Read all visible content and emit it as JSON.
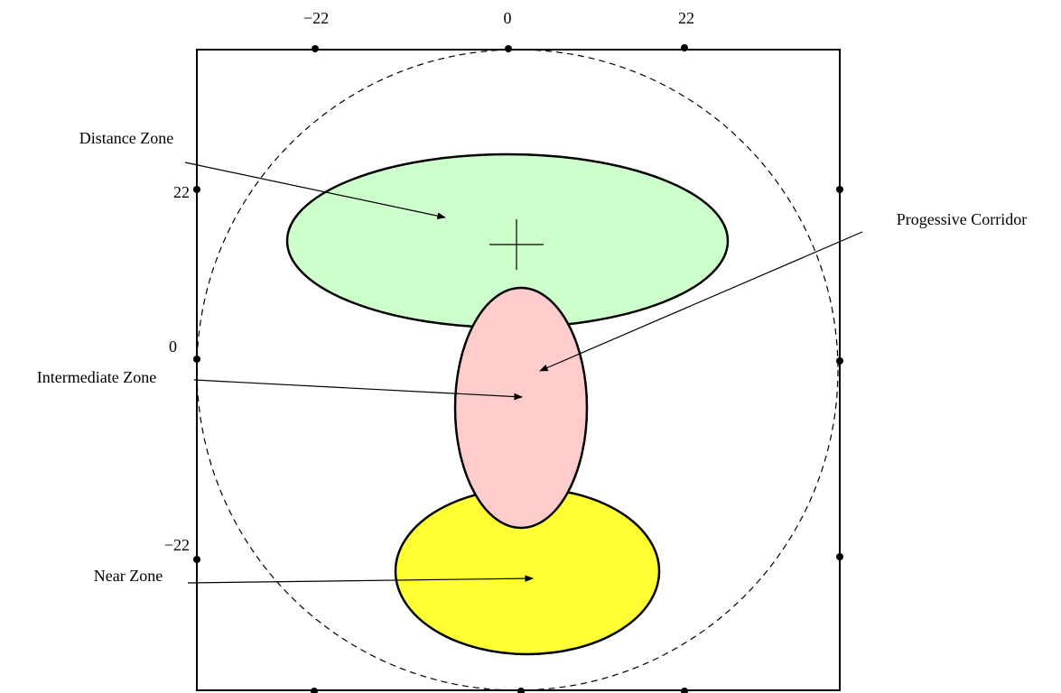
{
  "axes": {
    "top_labels": [
      "−22",
      "0",
      "22"
    ],
    "left_labels": [
      "22",
      "0",
      "−22"
    ]
  },
  "zones": {
    "distance": "Distance Zone",
    "corridor": "Progessive Corridor",
    "intermediate": "Intermediate Zone",
    "near": "Near Zone"
  }
}
